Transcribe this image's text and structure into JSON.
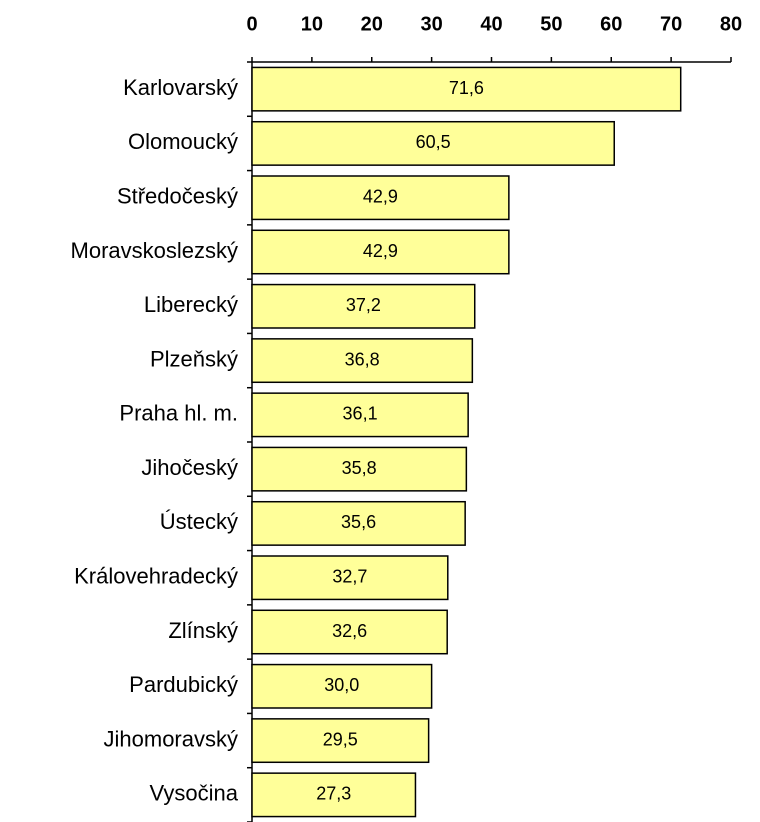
{
  "chart_data": {
    "type": "bar",
    "orientation": "horizontal",
    "categories": [
      "Karlovarský",
      "Olomoucký",
      "Středočeský",
      "Moravskoslezský",
      "Liberecký",
      "Plzeňský",
      "Praha hl. m.",
      "Jihočeský",
      "Ústecký",
      "Královehradecký",
      "Zlínský",
      "Pardubický",
      "Jihomoravský",
      "Vysočina"
    ],
    "values": [
      71.6,
      60.5,
      42.9,
      42.9,
      37.2,
      36.8,
      36.1,
      35.8,
      35.6,
      32.7,
      32.6,
      30.0,
      29.5,
      27.3
    ],
    "value_labels": [
      "71,6",
      "60,5",
      "42,9",
      "42,9",
      "37,2",
      "36,8",
      "36,1",
      "35,8",
      "35,6",
      "32,7",
      "32,6",
      "30,0",
      "29,5",
      "27,3"
    ],
    "color": "#ffff99",
    "xlim": [
      0,
      80
    ],
    "xticks": [
      0,
      10,
      20,
      30,
      40,
      50,
      60,
      70,
      80
    ]
  }
}
